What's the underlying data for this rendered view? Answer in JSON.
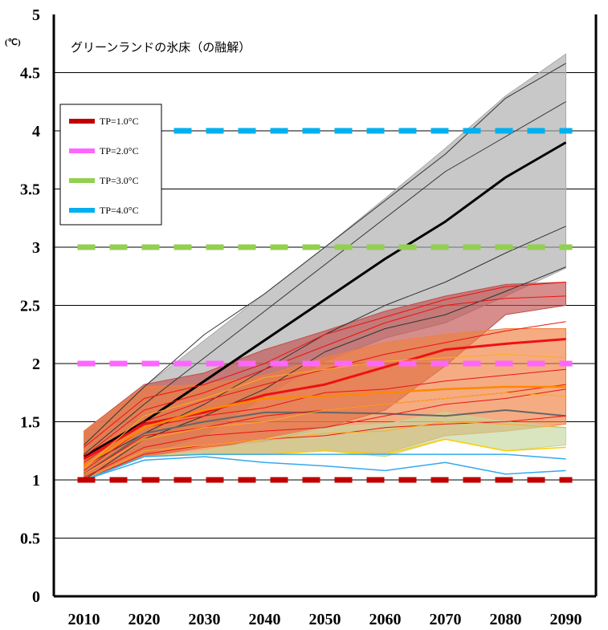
{
  "chart_data": {
    "type": "line",
    "title": "グリーンランドの氷床（の融解）",
    "unit": "(℃)",
    "xlabel": "",
    "ylabel": "",
    "x": [
      2010,
      2020,
      2030,
      2040,
      2050,
      2060,
      2070,
      2080,
      2090
    ],
    "xlim": [
      2005,
      2095
    ],
    "ylim": [
      0,
      5
    ],
    "y_ticks": [
      {
        "label": "0",
        "value": 0
      },
      {
        "label": "0.5",
        "value": 0.5
      },
      {
        "label": "1",
        "value": 1
      },
      {
        "label": "1.5",
        "value": 1.5
      },
      {
        "label": "2",
        "value": 2
      },
      {
        "label": "2.5",
        "value": 2.5
      },
      {
        "label": "3",
        "value": 3
      },
      {
        "label": "3.5",
        "value": 3.5
      },
      {
        "label": "4",
        "value": 4
      },
      {
        "label": "4.5",
        "value": 4.5
      },
      {
        "label": "5",
        "value": 5
      }
    ],
    "x_ticks": [
      "2010",
      "2020",
      "2030",
      "2040",
      "2050",
      "2060",
      "2070",
      "2080",
      "2090"
    ],
    "grid": "horizontal",
    "legend_position": "top-left",
    "legend": [
      {
        "label": "TP=1.0°C",
        "color": "#c00000"
      },
      {
        "label": "TP=2.0°C",
        "color": "#ff66ff"
      },
      {
        "label": "TP=3.0°C",
        "color": "#92d050"
      },
      {
        "label": "TP=4.0°C",
        "color": "#00b0f0"
      }
    ],
    "thresholds": [
      {
        "label": "TP=1.0°C",
        "value": 1.0,
        "color": "#c00000"
      },
      {
        "label": "TP=2.0°C",
        "value": 2.0,
        "color": "#ff66ff"
      },
      {
        "label": "TP=3.0°C",
        "value": 3.0,
        "color": "#92d050"
      },
      {
        "label": "TP=4.0°C",
        "value": 4.0,
        "color": "#00b0f0"
      }
    ],
    "bands": [
      {
        "color": "#aaaaaa",
        "lower": [
          1.0,
          1.22,
          1.38,
          1.72,
          2.02,
          2.22,
          2.35,
          2.58,
          2.82
        ],
        "upper": [
          1.42,
          1.8,
          2.2,
          2.6,
          3.0,
          3.42,
          3.85,
          4.3,
          4.66
        ]
      },
      {
        "color": "#c0504d",
        "lower": [
          1.0,
          1.2,
          1.28,
          1.33,
          1.45,
          1.6,
          1.98,
          2.42,
          2.5
        ],
        "upper": [
          1.42,
          1.82,
          1.92,
          2.12,
          2.28,
          2.45,
          2.58,
          2.68,
          2.7
        ]
      },
      {
        "color": "#f08040",
        "lower": [
          1.0,
          1.2,
          1.22,
          1.22,
          1.25,
          1.23,
          1.38,
          1.42,
          1.48
        ],
        "upper": [
          1.42,
          1.8,
          1.82,
          1.9,
          2.05,
          2.18,
          2.25,
          2.3,
          2.3
        ]
      },
      {
        "color": "#c4d79b",
        "lower": [
          1.0,
          1.2,
          1.22,
          1.22,
          1.25,
          1.2,
          1.35,
          1.25,
          1.3
        ],
        "upper": [
          1.0,
          1.2,
          1.25,
          1.35,
          1.45,
          1.48,
          1.58,
          1.5,
          1.45
        ]
      }
    ],
    "series": [
      {
        "color": "#000000",
        "width": 3,
        "values": [
          1.2,
          1.5,
          1.85,
          2.2,
          2.55,
          2.9,
          3.22,
          3.6,
          3.9
        ]
      },
      {
        "color": "#333333",
        "width": 1,
        "values": [
          1.3,
          1.8,
          2.25,
          2.6,
          3.0,
          3.4,
          3.8,
          4.28,
          4.58
        ]
      },
      {
        "color": "#333333",
        "width": 1,
        "values": [
          1.22,
          1.65,
          2.05,
          2.45,
          2.85,
          3.25,
          3.65,
          3.95,
          4.25
        ]
      },
      {
        "color": "#333333",
        "width": 1,
        "values": [
          1.12,
          1.4,
          1.65,
          1.95,
          2.25,
          2.5,
          2.7,
          2.95,
          3.18
        ]
      },
      {
        "color": "#333333",
        "width": 1,
        "values": [
          1.0,
          1.35,
          1.55,
          1.78,
          2.1,
          2.3,
          2.42,
          2.62,
          2.83
        ]
      },
      {
        "color": "#666666",
        "width": 2,
        "values": [
          1.05,
          1.4,
          1.5,
          1.58,
          1.58,
          1.57,
          1.55,
          1.6,
          1.55
        ]
      },
      {
        "color": "#ee1111",
        "width": 3,
        "values": [
          1.18,
          1.48,
          1.58,
          1.73,
          1.82,
          1.97,
          2.12,
          2.17,
          2.21
        ]
      },
      {
        "color": "#ee1111",
        "width": 1,
        "values": [
          1.28,
          1.7,
          1.82,
          2.0,
          2.25,
          2.4,
          2.55,
          2.66,
          2.7
        ]
      },
      {
        "color": "#ee1111",
        "width": 1,
        "values": [
          1.2,
          1.6,
          1.75,
          1.95,
          2.15,
          2.35,
          2.5,
          2.56,
          2.58
        ]
      },
      {
        "color": "#ee1111",
        "width": 1,
        "values": [
          1.15,
          1.5,
          1.68,
          1.82,
          1.95,
          2.08,
          2.18,
          2.28,
          2.36
        ]
      },
      {
        "color": "#ee1111",
        "width": 1,
        "values": [
          1.08,
          1.45,
          1.55,
          1.62,
          1.75,
          1.78,
          1.85,
          1.9,
          1.95
        ]
      },
      {
        "color": "#ee1111",
        "width": 1,
        "values": [
          1.05,
          1.38,
          1.45,
          1.55,
          1.6,
          1.65,
          1.7,
          1.75,
          1.82
        ]
      },
      {
        "color": "#ee1111",
        "width": 1,
        "values": [
          1.02,
          1.28,
          1.38,
          1.42,
          1.45,
          1.55,
          1.65,
          1.7,
          1.78
        ]
      },
      {
        "color": "#ee1111",
        "width": 1,
        "values": [
          1.0,
          1.22,
          1.3,
          1.35,
          1.38,
          1.45,
          1.48,
          1.5,
          1.55
        ]
      },
      {
        "color": "#ff8800",
        "width": 2.5,
        "values": [
          1.12,
          1.45,
          1.6,
          1.7,
          1.72,
          1.75,
          1.78,
          1.8,
          1.8
        ]
      },
      {
        "color": "#ffaa22",
        "width": 1,
        "values": [
          1.1,
          1.55,
          1.7,
          1.88,
          1.95,
          2.02,
          2.05,
          2.08,
          2.05
        ]
      },
      {
        "color": "#ffaa22",
        "width": 1,
        "values": [
          1.05,
          1.35,
          1.45,
          1.5,
          1.6,
          1.65,
          1.7,
          1.75,
          1.72
        ]
      },
      {
        "color": "#ffaa22",
        "width": 1,
        "values": [
          1.0,
          1.25,
          1.3,
          1.35,
          1.4,
          1.42,
          1.5,
          1.48,
          1.45
        ]
      },
      {
        "color": "#ffcc00",
        "width": 1.5,
        "values": [
          1.0,
          1.2,
          1.22,
          1.22,
          1.25,
          1.22,
          1.35,
          1.25,
          1.28
        ]
      },
      {
        "color": "#33aaee",
        "width": 1.5,
        "values": [
          1.0,
          1.17,
          1.2,
          1.15,
          1.12,
          1.08,
          1.15,
          1.05,
          1.08
        ]
      },
      {
        "color": "#33aaee",
        "width": 1.5,
        "values": [
          1.0,
          1.2,
          1.22,
          1.22,
          1.22,
          1.22,
          1.22,
          1.22,
          1.18
        ]
      }
    ]
  }
}
